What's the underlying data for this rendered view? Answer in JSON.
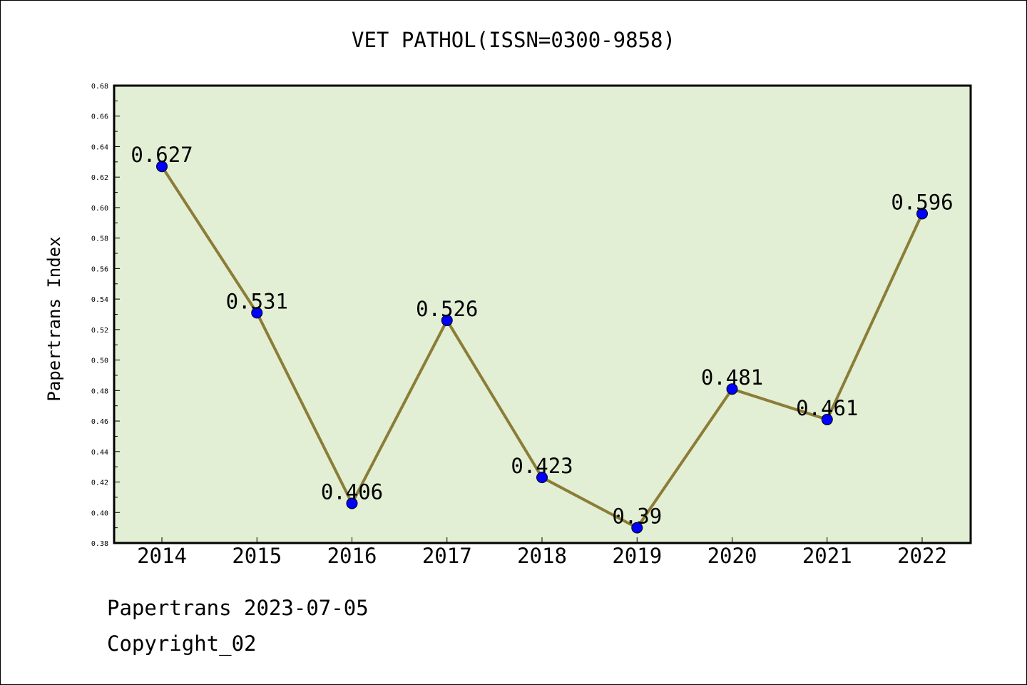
{
  "chart_data": {
    "type": "line",
    "title": "VET PATHOL(ISSN=0300-9858)",
    "xlabel": "",
    "ylabel": "Papertrans Index",
    "categories": [
      "2014",
      "2015",
      "2016",
      "2017",
      "2018",
      "2019",
      "2020",
      "2021",
      "2022"
    ],
    "series": [
      {
        "values": [
          0.627,
          0.531,
          0.406,
          0.526,
          0.423,
          0.39,
          0.481,
          0.461,
          0.596
        ],
        "data_labels": [
          "0.627",
          "0.531",
          "0.406",
          "0.526",
          "0.423",
          "0.39",
          "0.481",
          "0.461",
          "0.596"
        ]
      }
    ],
    "ylim": [
      0.38,
      0.68
    ],
    "yticks": [
      "0.38",
      "0.40",
      "0.42",
      "0.44",
      "0.46",
      "0.48",
      "0.50",
      "0.52",
      "0.54",
      "0.56",
      "0.58",
      "0.60",
      "0.62",
      "0.64",
      "0.66",
      "0.68"
    ],
    "grid": false,
    "legend": "none",
    "colors": {
      "plot_background": "#e2efd5",
      "line": "#8b7d37",
      "marker": "#0000ff"
    }
  },
  "footer": {
    "line1": "Papertrans 2023-07-05",
    "line2": "Copyright_02"
  }
}
